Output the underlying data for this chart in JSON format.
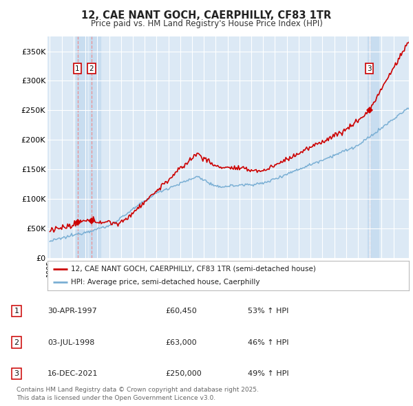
{
  "title": "12, CAE NANT GOCH, CAERPHILLY, CF83 1TR",
  "subtitle": "Price paid vs. HM Land Registry's House Price Index (HPI)",
  "background_color": "#ffffff",
  "plot_bg_color": "#dce9f5",
  "grid_color": "#ffffff",
  "sale_date_nums": [
    1997.33,
    1998.5,
    2021.96
  ],
  "sale_prices": [
    60450,
    63000,
    250000
  ],
  "sale_labels": [
    "1",
    "2",
    "3"
  ],
  "legend_line1": "12, CAE NANT GOCH, CAERPHILLY, CF83 1TR (semi-detached house)",
  "legend_line2": "HPI: Average price, semi-detached house, Caerphilly",
  "table_rows": [
    [
      "1",
      "30-APR-1997",
      "£60,450",
      "53% ↑ HPI"
    ],
    [
      "2",
      "03-JUL-1998",
      "£63,000",
      "46% ↑ HPI"
    ],
    [
      "3",
      "16-DEC-2021",
      "£250,000",
      "49% ↑ HPI"
    ]
  ],
  "footer": "Contains HM Land Registry data © Crown copyright and database right 2025.\nThis data is licensed under the Open Government Licence v3.0.",
  "ylim": [
    0,
    375000
  ],
  "yticks": [
    0,
    50000,
    100000,
    150000,
    200000,
    250000,
    300000,
    350000
  ],
  "ytick_labels": [
    "£0",
    "£50K",
    "£100K",
    "£150K",
    "£200K",
    "£250K",
    "£300K",
    "£350K"
  ],
  "xlim_min": 1994.8,
  "xlim_max": 2025.3,
  "red_color": "#cc0000",
  "blue_color": "#7aafd4",
  "shade_color": "#c8ddf0",
  "dashed_line_color": "#ee8888",
  "sale_marker_color": "#cc0000"
}
